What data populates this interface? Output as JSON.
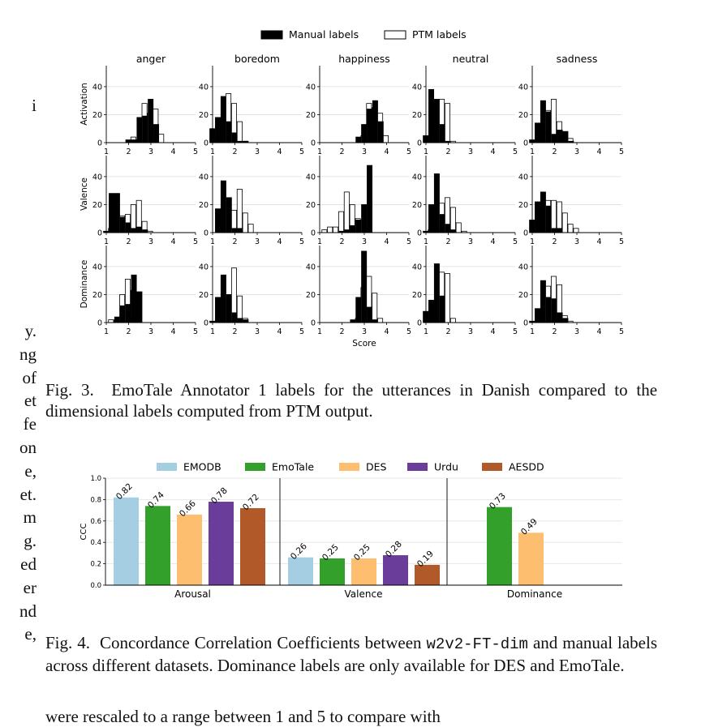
{
  "left_column_fragments": {
    "top": [
      "i"
    ],
    "middle": [
      "y.",
      "ng",
      "of",
      "et",
      "fe",
      "on",
      "e,",
      "et.",
      "m",
      "g.",
      "ed",
      "er",
      "nd",
      "e,"
    ]
  },
  "bottom_fragment": "were rescaled to a range between 1 and 5 to compare with",
  "fig3": {
    "caption_label": "Fig. 3.",
    "caption_text": "EmoTale Annotator 1 labels for the utterances in Danish compared to the dimensional labels computed from PTM output.",
    "chart_data": {
      "type": "bar",
      "legend": [
        {
          "name": "Manual labels",
          "fill": "#000000"
        },
        {
          "name": "PTM labels",
          "fill": "#ffffff"
        }
      ],
      "legend_placement": "top-center",
      "columns": [
        "anger",
        "boredom",
        "happiness",
        "neutral",
        "sadness"
      ],
      "rows": [
        "Activation",
        "Valence",
        "Dominance"
      ],
      "xlabel": "Score",
      "x_ticks": [
        "1",
        "2",
        "3",
        "4",
        "5"
      ],
      "y_ticks": [
        "0",
        "20",
        "40"
      ],
      "ylim": [
        0,
        55
      ],
      "grid": "horizontal",
      "bin_centers": [
        1.1,
        1.35,
        1.6,
        1.85,
        2.1,
        2.35,
        2.6,
        2.85,
        3.1,
        3.35,
        3.6,
        3.85,
        4.1,
        4.35,
        4.6,
        4.85
      ],
      "panels": [
        {
          "row": "Activation",
          "column": "anger",
          "manual": [
            0,
            0,
            0,
            0,
            2,
            2,
            18,
            19,
            31,
            13,
            0,
            0,
            0,
            0,
            0,
            0
          ],
          "ptm": [
            0,
            0,
            0,
            0,
            4,
            2,
            28,
            21,
            24,
            6,
            0,
            0,
            0,
            0,
            0,
            0
          ]
        },
        {
          "row": "Activation",
          "column": "boredom",
          "manual": [
            10,
            18,
            33,
            15,
            7,
            1,
            1,
            0,
            0,
            0,
            0,
            0,
            0,
            0,
            0,
            0
          ],
          "ptm": [
            3,
            3,
            35,
            28,
            15,
            1,
            0,
            0,
            0,
            0,
            0,
            0,
            0,
            0,
            0,
            0
          ]
        },
        {
          "row": "Activation",
          "column": "happiness",
          "manual": [
            0,
            0,
            0,
            0,
            0,
            0,
            0,
            4,
            13,
            24,
            30,
            15,
            0,
            0,
            0,
            0
          ],
          "ptm": [
            0,
            0,
            0,
            0,
            0,
            0,
            0,
            5,
            28,
            25,
            21,
            5,
            0,
            0,
            0,
            0
          ]
        },
        {
          "row": "Activation",
          "column": "neutral",
          "manual": [
            5,
            38,
            31,
            13,
            1,
            0,
            0,
            0,
            0,
            0,
            0,
            0,
            0,
            0,
            0,
            0
          ],
          "ptm": [
            4,
            21,
            31,
            28,
            1,
            0,
            0,
            0,
            0,
            0,
            0,
            0,
            0,
            0,
            0,
            0
          ]
        },
        {
          "row": "Activation",
          "column": "sadness",
          "manual": [
            2,
            14,
            30,
            22,
            6,
            9,
            8,
            1,
            0,
            0,
            0,
            0,
            0,
            0,
            0,
            0
          ],
          "ptm": [
            0,
            7,
            23,
            31,
            15,
            7,
            3,
            0,
            0,
            0,
            0,
            0,
            0,
            0,
            0,
            0
          ]
        },
        {
          "row": "Valence",
          "column": "anger",
          "manual": [
            1,
            28,
            28,
            11,
            7,
            3,
            4,
            2,
            0,
            0,
            0,
            0,
            0,
            0,
            0,
            0
          ],
          "ptm": [
            3,
            4,
            12,
            13,
            20,
            23,
            8,
            1,
            0,
            0,
            0,
            0,
            0,
            0,
            0,
            0
          ]
        },
        {
          "row": "Valence",
          "column": "boredom",
          "manual": [
            0,
            17,
            37,
            25,
            3,
            3,
            0,
            0,
            0,
            0,
            0,
            0,
            0,
            0,
            0,
            0
          ],
          "ptm": [
            0,
            7,
            21,
            16,
            31,
            14,
            6,
            0,
            0,
            0,
            0,
            0,
            0,
            0,
            0,
            0
          ]
        },
        {
          "row": "Valence",
          "column": "happiness",
          "manual": [
            0,
            0,
            0,
            0,
            1,
            2,
            5,
            9,
            20,
            48,
            0,
            0,
            0,
            0,
            0,
            0
          ],
          "ptm": [
            2,
            4,
            4,
            15,
            29,
            20,
            10,
            0,
            0,
            0,
            0,
            0,
            0,
            0,
            0,
            0
          ]
        },
        {
          "row": "Valence",
          "column": "neutral",
          "manual": [
            1,
            20,
            42,
            13,
            6,
            2,
            0,
            0,
            0,
            0,
            0,
            0,
            0,
            0,
            0,
            0
          ],
          "ptm": [
            2,
            11,
            21,
            25,
            18,
            7,
            1,
            0,
            0,
            0,
            0,
            0,
            0,
            0,
            0,
            0
          ]
        },
        {
          "row": "Valence",
          "column": "sadness",
          "manual": [
            9,
            22,
            29,
            19,
            3,
            3,
            0,
            0,
            0,
            0,
            0,
            0,
            0,
            0,
            0,
            0
          ],
          "ptm": [
            4,
            6,
            23,
            23,
            22,
            14,
            6,
            3,
            0,
            0,
            0,
            0,
            0,
            0,
            0,
            0
          ]
        },
        {
          "row": "Dominance",
          "column": "anger",
          "manual": [
            0,
            0,
            4,
            12,
            13,
            34,
            22,
            0,
            0,
            0,
            0,
            0,
            0,
            0,
            0,
            0
          ],
          "ptm": [
            2,
            2,
            20,
            31,
            23,
            7,
            0,
            0,
            0,
            0,
            0,
            0,
            0,
            0,
            0,
            0
          ]
        },
        {
          "row": "Dominance",
          "column": "boredom",
          "manual": [
            1,
            18,
            34,
            20,
            7,
            3,
            2,
            0,
            0,
            0,
            0,
            0,
            0,
            0,
            0,
            0
          ],
          "ptm": [
            1,
            3,
            20,
            39,
            19,
            3,
            0,
            0,
            0,
            0,
            0,
            0,
            0,
            0,
            0,
            0
          ]
        },
        {
          "row": "Dominance",
          "column": "happiness",
          "manual": [
            0,
            0,
            0,
            0,
            0,
            0,
            2,
            18,
            51,
            11,
            2,
            0,
            0,
            0,
            0,
            0
          ],
          "ptm": [
            0,
            0,
            0,
            0,
            0,
            0,
            3,
            25,
            33,
            21,
            3,
            0,
            0,
            0,
            0,
            0
          ]
        },
        {
          "row": "Dominance",
          "column": "neutral",
          "manual": [
            8,
            16,
            42,
            19,
            0,
            0,
            0,
            0,
            0,
            0,
            0,
            0,
            0,
            0,
            0,
            0
          ],
          "ptm": [
            0,
            10,
            36,
            35,
            3,
            0,
            0,
            0,
            0,
            0,
            0,
            0,
            0,
            0,
            0,
            0
          ]
        },
        {
          "row": "Dominance",
          "column": "sadness",
          "manual": [
            1,
            10,
            30,
            18,
            17,
            7,
            3,
            0,
            0,
            0,
            0,
            0,
            0,
            0,
            0,
            0
          ],
          "ptm": [
            0,
            2,
            26,
            33,
            27,
            5,
            1,
            0,
            0,
            0,
            0,
            0,
            0,
            0,
            0,
            0
          ]
        }
      ]
    }
  },
  "fig4": {
    "caption_label": "Fig. 4.",
    "caption_pre": "Concordance Correlation Coefficients between",
    "caption_code": "w2v2-FT-dim",
    "caption_post": "and manual labels across different datasets. Dominance labels are only available for DES and EmoTale.",
    "chart_data": {
      "type": "bar",
      "ylabel": "CCC",
      "ylim": [
        0,
        1.0
      ],
      "y_ticks": [
        "0.0",
        "0.2",
        "0.4",
        "0.6",
        "0.8",
        "1.0"
      ],
      "grid": "horizontal",
      "legend_placement": "top-center",
      "categories": [
        "Arousal",
        "Valence",
        "Dominance"
      ],
      "series": [
        {
          "name": "EMODB",
          "color": "#a6cee3",
          "values": [
            0.82,
            0.26,
            null
          ],
          "labels": [
            "0.82",
            "0.26",
            ""
          ]
        },
        {
          "name": "EmoTale",
          "color": "#33a02c",
          "values": [
            0.74,
            0.25,
            0.73
          ],
          "labels": [
            "0.74",
            "0.25",
            "0.73"
          ]
        },
        {
          "name": "DES",
          "color": "#fdbf6f",
          "values": [
            0.66,
            0.25,
            0.49
          ],
          "labels": [
            "0.66",
            "0.25",
            "0.49"
          ]
        },
        {
          "name": "Urdu",
          "color": "#6a3d9a",
          "values": [
            0.78,
            0.28,
            null
          ],
          "labels": [
            "0.78",
            "0.28",
            ""
          ]
        },
        {
          "name": "AESDD",
          "color": "#b15928",
          "values": [
            0.72,
            0.19,
            null
          ],
          "labels": [
            "0.72",
            "0.19",
            ""
          ]
        }
      ]
    }
  }
}
